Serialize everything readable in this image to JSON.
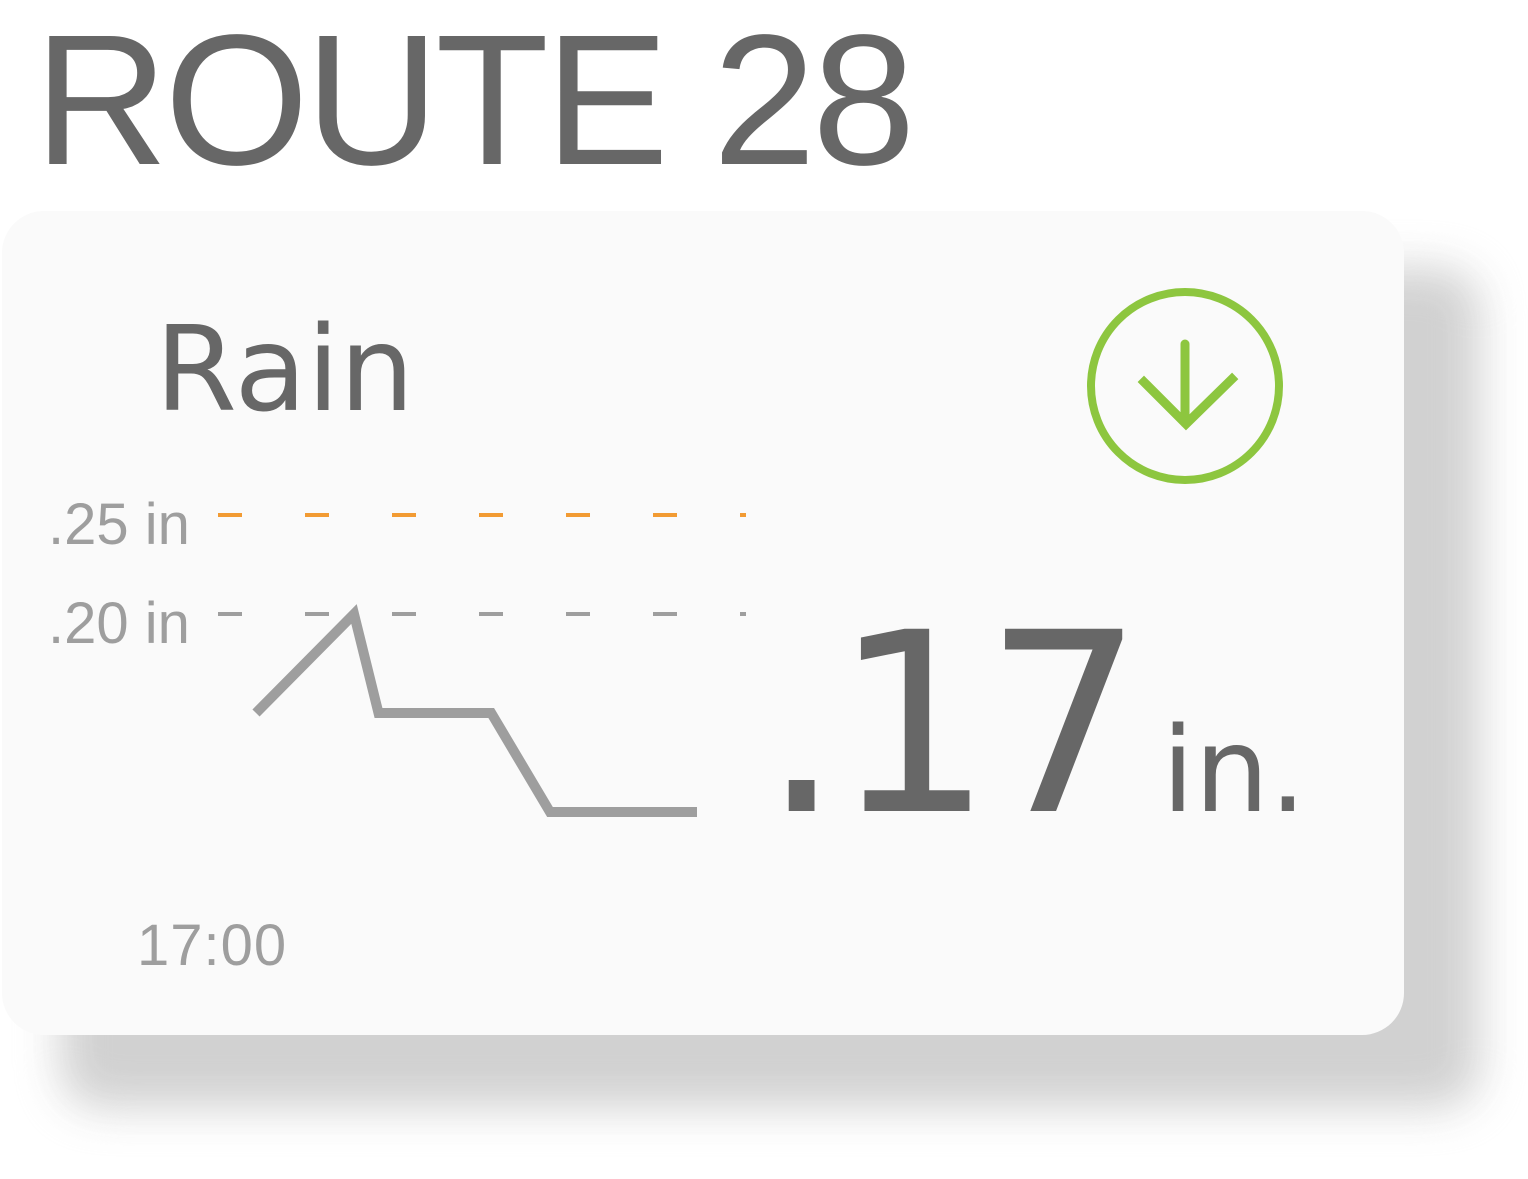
{
  "route": {
    "title": "ROUTE 28"
  },
  "metric": {
    "label": "Rain",
    "value": ".17",
    "unit": "in.",
    "trend_icon": "arrow-down-circle-icon",
    "trend_color": "#8dc63f"
  },
  "chart_data": {
    "type": "line",
    "x_start_label": "17:00",
    "y_ticks": [
      {
        "label": ".25 in",
        "value": 0.25,
        "color": "#f29b33",
        "style": "dashed"
      },
      {
        "label": ".20 in",
        "value": 0.2,
        "color": "#9e9e9e",
        "style": "dashed"
      }
    ],
    "series": [
      {
        "values": [
          0.15,
          0.2,
          0.15,
          0.15,
          0.1,
          0.1
        ],
        "x_steps": [
          0,
          1,
          1.25,
          2.4,
          3,
          4.5
        ],
        "color": "#9e9e9e"
      }
    ]
  }
}
